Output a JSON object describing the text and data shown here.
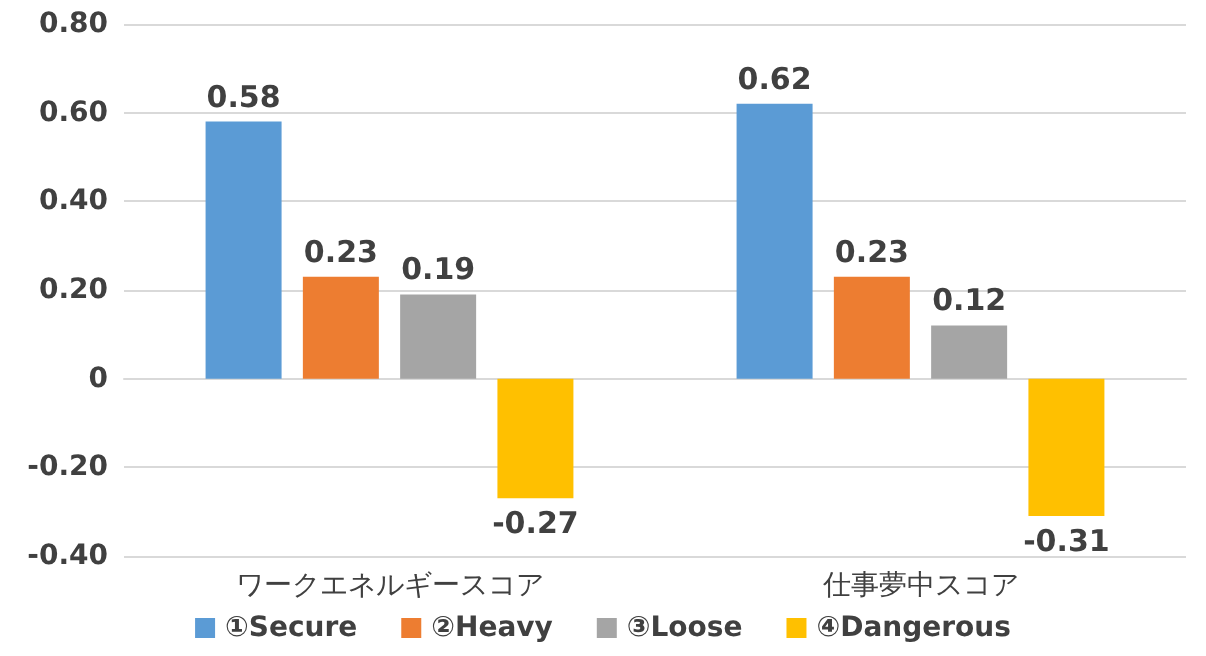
{
  "chart_data": {
    "type": "bar",
    "categories": [
      "ワークエネルギースコア",
      "仕事夢中スコア"
    ],
    "series": [
      {
        "name": "①Secure",
        "color": "#5b9bd5",
        "values": [
          0.58,
          0.62
        ]
      },
      {
        "name": "②Heavy",
        "color": "#ed7d31",
        "values": [
          0.23,
          0.23
        ]
      },
      {
        "name": "③Loose",
        "color": "#a5a5a5",
        "values": [
          0.19,
          0.12
        ]
      },
      {
        "name": "④Dangerous",
        "color": "#ffc000",
        "values": [
          -0.27,
          -0.31
        ]
      }
    ],
    "ylim": [
      -0.4,
      0.8
    ],
    "yticks": [
      {
        "value": -0.4,
        "label": "-0.40"
      },
      {
        "value": -0.2,
        "label": "-0.20"
      },
      {
        "value": 0,
        "label": "0"
      },
      {
        "value": 0.2,
        "label": "0.20"
      },
      {
        "value": 0.4,
        "label": "0.40"
      },
      {
        "value": 0.6,
        "label": "0.60"
      },
      {
        "value": 0.8,
        "label": "0.80"
      }
    ],
    "grid": "y",
    "legend": "bottom",
    "data_labels": true
  }
}
